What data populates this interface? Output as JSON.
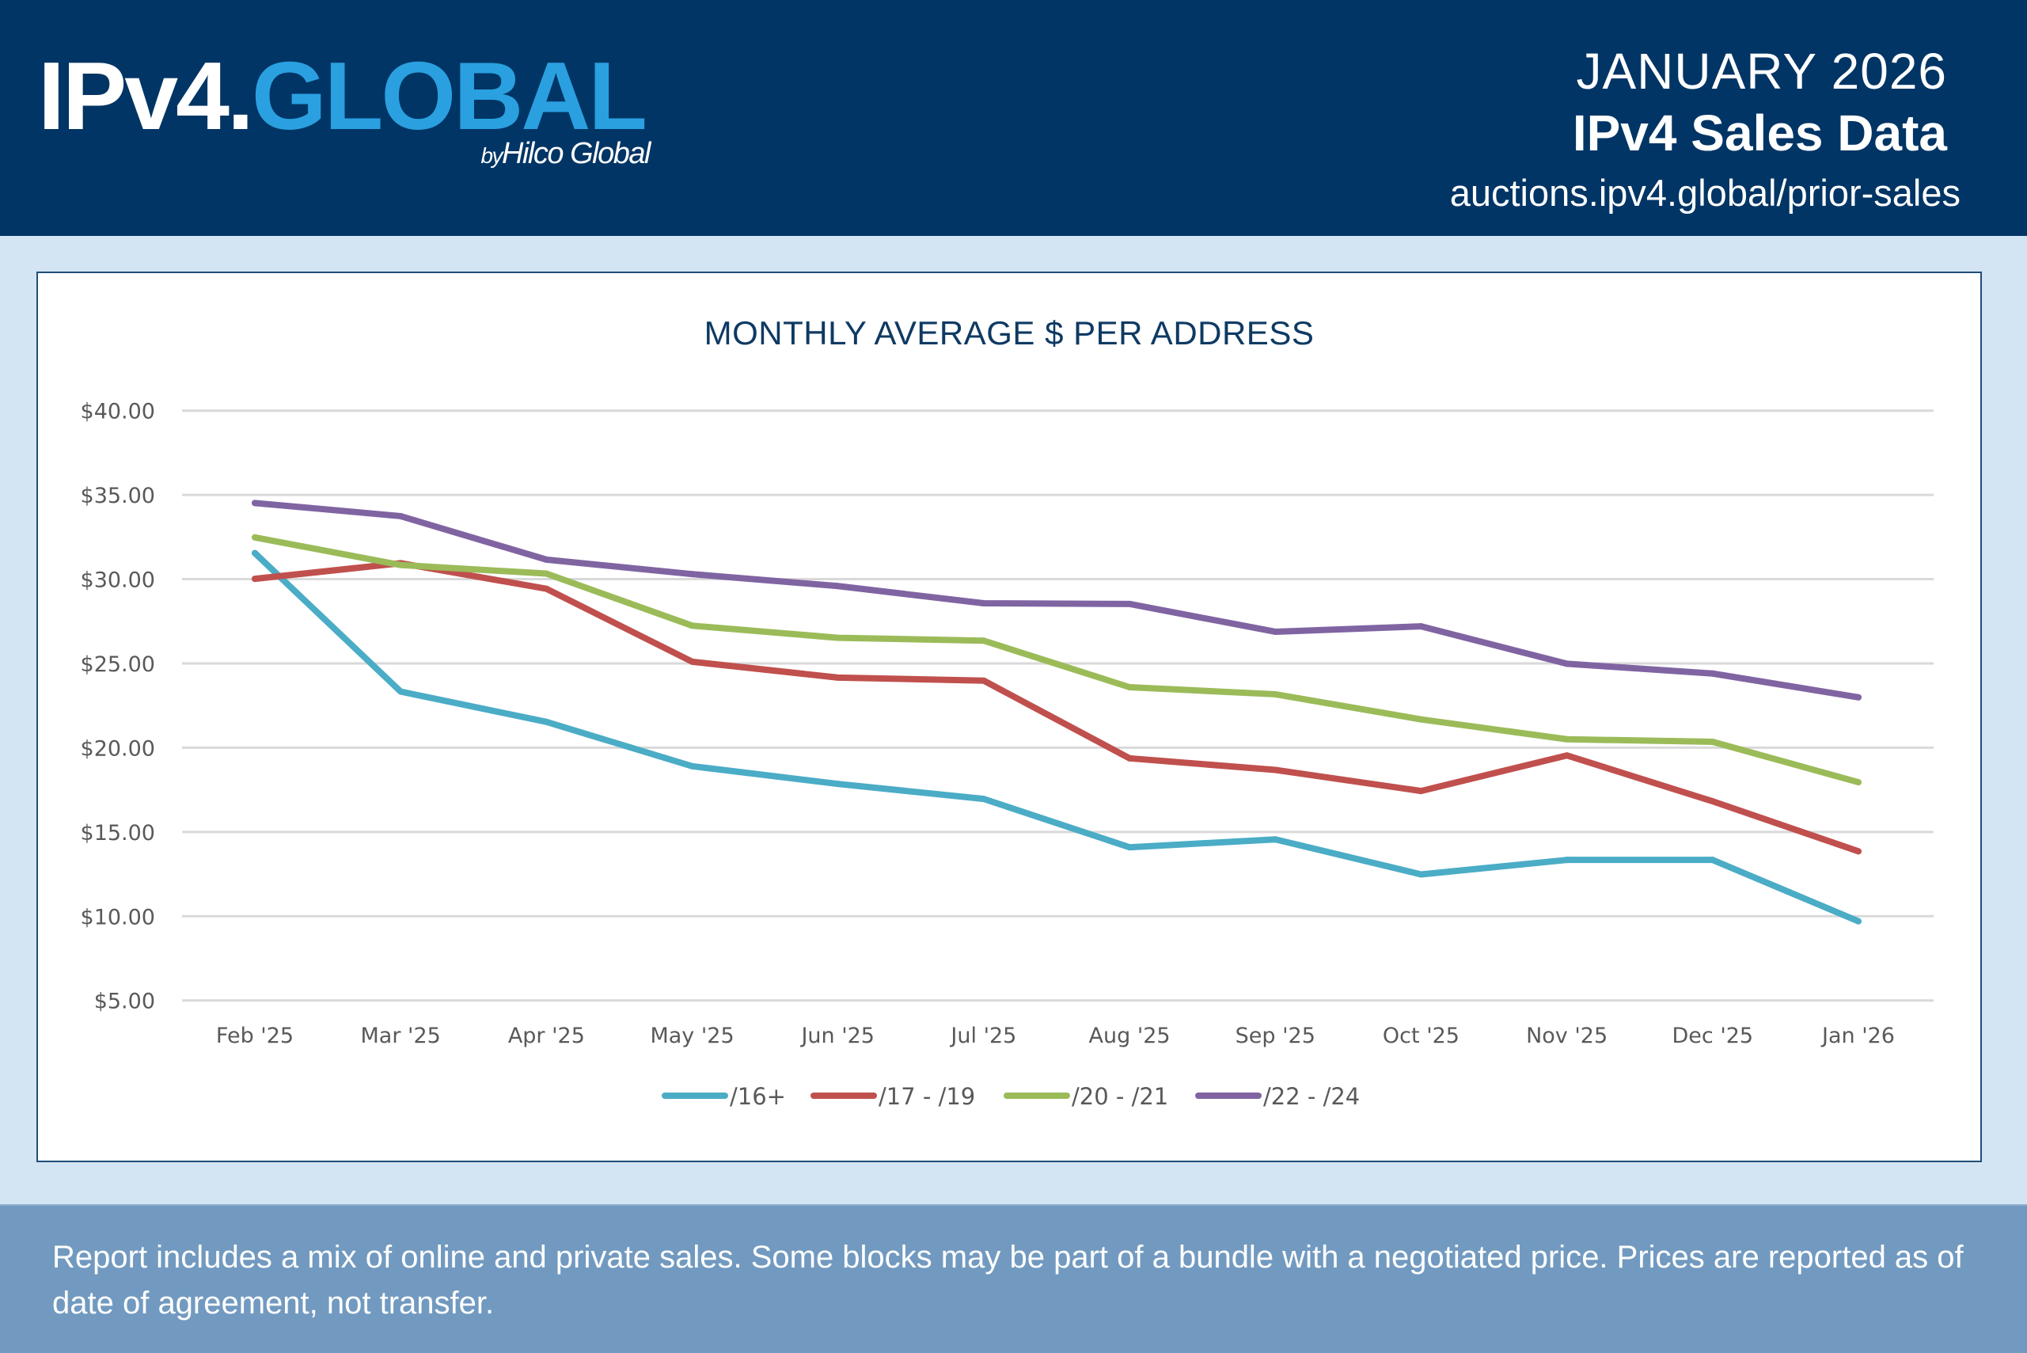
{
  "header": {
    "logo": {
      "part1": "IPv4.",
      "part2": "GLOBAL",
      "by_prefix": "by",
      "by_name": "Hilco Global"
    },
    "month": "JANUARY 2026",
    "title": "IPv4 Sales Data",
    "url": "auctions.ipv4.global/prior-sales"
  },
  "colors": {
    "header_bg": "#003565",
    "brand_blue": "#2aa0e0",
    "page_bg": "#d3e4f2",
    "footer_bg": "#729ac0",
    "title_navy": "#0e3a63"
  },
  "footer": {
    "text": "Report includes a mix of online and private sales. Some blocks may be part of a bundle with a negotiated price. Prices are reported as of date of agreement, not transfer."
  },
  "chart_data": {
    "type": "line",
    "title": "MONTHLY AVERAGE $ PER ADDRESS",
    "xlabel": "",
    "ylabel": "",
    "ylim": [
      5,
      40
    ],
    "yticks": [
      5,
      10,
      15,
      20,
      25,
      30,
      35,
      40
    ],
    "ytick_labels": [
      "$5.00",
      "$10.00",
      "$15.00",
      "$20.00",
      "$25.00",
      "$30.00",
      "$35.00",
      "$40.00"
    ],
    "grid": true,
    "legend_position": "bottom",
    "categories": [
      "Feb '25",
      "Mar '25",
      "Apr '25",
      "May '25",
      "Jun '25",
      "Jul '25",
      "Aug '25",
      "Sep '25",
      "Oct '25",
      "Nov '25",
      "Dec '25",
      "Jan '26"
    ],
    "series": [
      {
        "name": "/16+",
        "color": "#4bacc6",
        "values": [
          31.55,
          23.33,
          21.53,
          18.9,
          17.85,
          16.96,
          14.09,
          14.56,
          12.48,
          13.34,
          13.34,
          9.7
        ]
      },
      {
        "name": "/17 - /19",
        "color": "#c0504d",
        "values": [
          30.02,
          30.95,
          29.43,
          25.1,
          24.16,
          23.98,
          19.37,
          18.68,
          17.43,
          19.54,
          16.82,
          13.85
        ]
      },
      {
        "name": "/20 - /21",
        "color": "#9bbb59",
        "values": [
          32.48,
          30.84,
          30.33,
          27.24,
          26.52,
          26.35,
          23.59,
          23.17,
          21.68,
          20.5,
          20.35,
          17.95
        ]
      },
      {
        "name": "/22 - /24",
        "color": "#8064a2",
        "values": [
          34.52,
          33.74,
          31.16,
          30.3,
          29.59,
          28.57,
          28.53,
          26.88,
          27.2,
          24.98,
          24.4,
          22.99
        ]
      }
    ]
  }
}
